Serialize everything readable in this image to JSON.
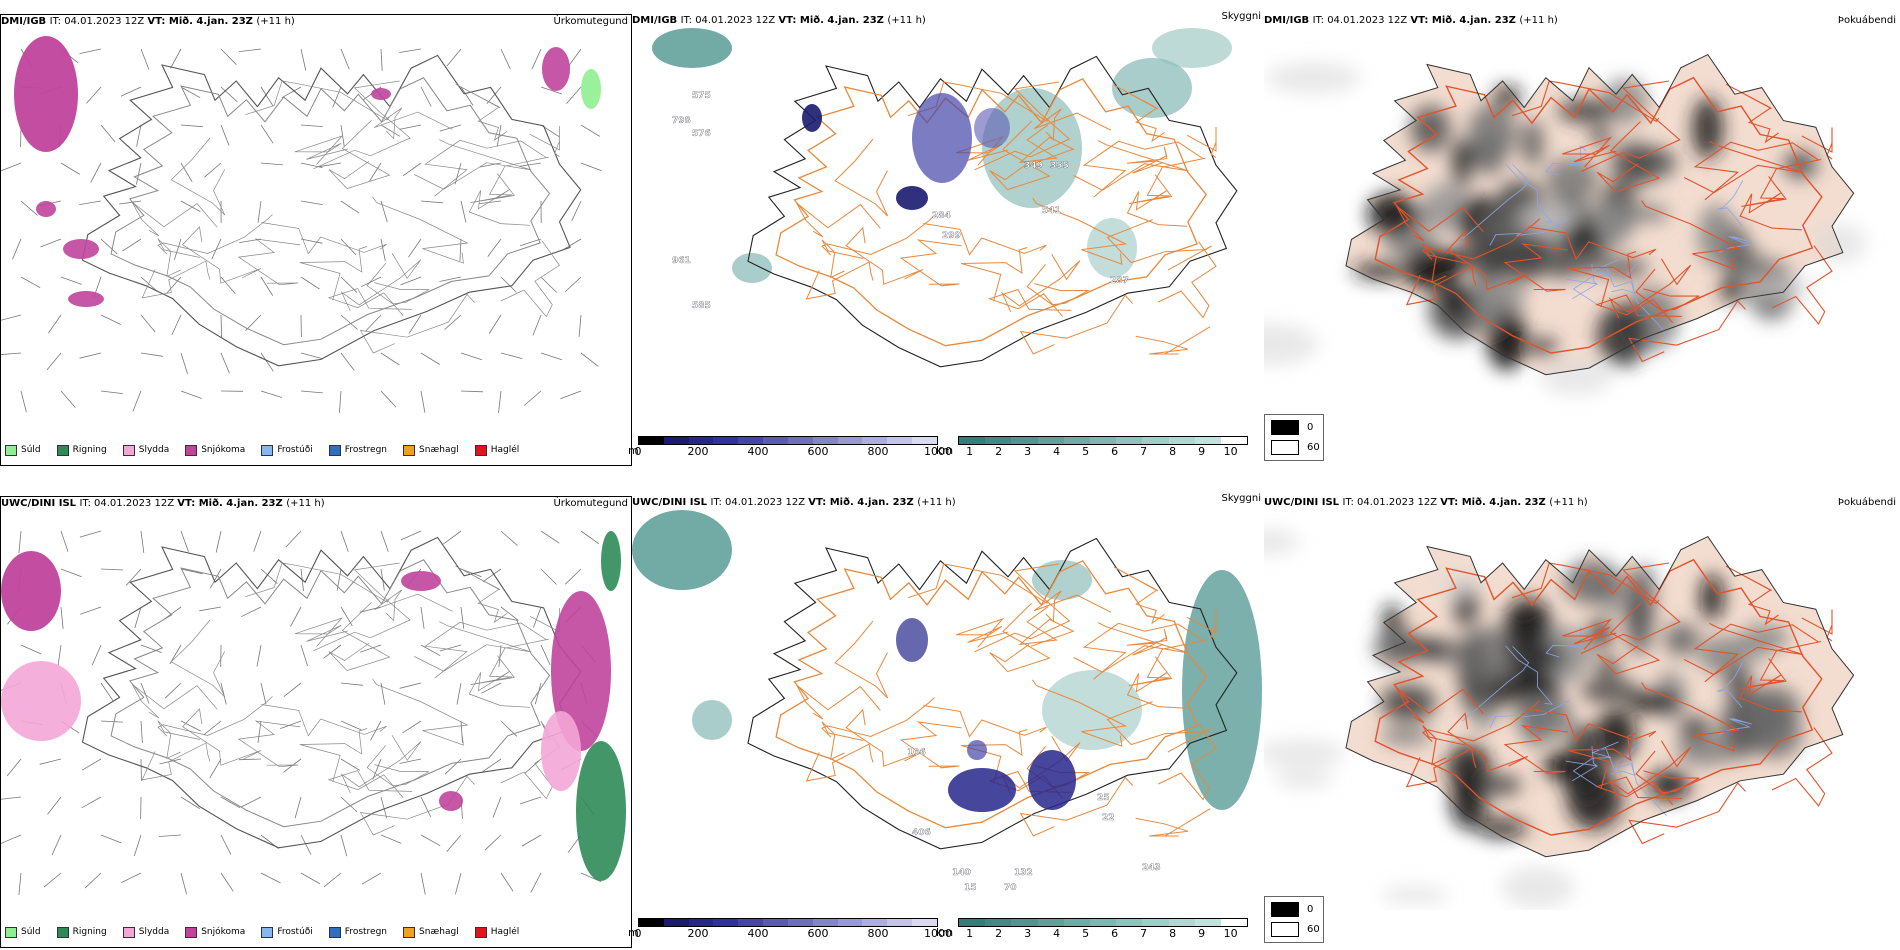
{
  "rows": [
    {
      "model": "DMI/IGB",
      "it_label": "IT:",
      "it_value": "04.01.2023 12Z",
      "vt_label": "VT:",
      "vt_value": "Mið. 4.jan. 23Z",
      "lead": "(+11 h)",
      "titles": {
        "precip": "Úrkomutegund",
        "visibility": "Skyggni",
        "fog": "Þokuábendi"
      }
    },
    {
      "model": "UWC/DINI ISL",
      "it_label": "IT:",
      "it_value": "04.01.2023 12Z",
      "vt_label": "VT:",
      "vt_value": "Mið. 4.jan. 23Z",
      "lead": "(+11 h)",
      "titles": {
        "precip": "Úrkomutegund",
        "visibility": "Skyggni",
        "fog": "Þokuábendi"
      }
    }
  ],
  "precip_legend": [
    {
      "label": "Súld",
      "color": "#90ee90"
    },
    {
      "label": "Rigning",
      "color": "#2e8b57"
    },
    {
      "label": "Slydda",
      "color": "#f4a6d7"
    },
    {
      "label": "Snjókoma",
      "color": "#c0449c"
    },
    {
      "label": "Frostúði",
      "color": "#87b7ec"
    },
    {
      "label": "Frostregn",
      "color": "#2f6fbf"
    },
    {
      "label": "Snæhagl",
      "color": "#f0a020"
    },
    {
      "label": "Haglél",
      "color": "#e0141e"
    }
  ],
  "ceiling_bar": {
    "unit": "m",
    "ticks": [
      "0",
      "200",
      "400",
      "600",
      "800",
      "1000"
    ],
    "colors": [
      "#000000",
      "#1a1a6e",
      "#26268c",
      "#3030a0",
      "#4444aa",
      "#5a5ab4",
      "#6e6ebe",
      "#8484c8",
      "#9898d2",
      "#aeaedc",
      "#c4c4e6",
      "#dadaf0"
    ]
  },
  "visibility_bar": {
    "unit": "km",
    "ticks": [
      "1",
      "2",
      "3",
      "4",
      "5",
      "6",
      "7",
      "8",
      "9",
      "10"
    ],
    "colors": [
      "#2f7f7a",
      "#3f8a85",
      "#4f9590",
      "#5fa09b",
      "#70aba6",
      "#80b6b1",
      "#91c1bc",
      "#a1ccc7",
      "#b2d7d2",
      "#c2e2dd",
      "#ffffff"
    ]
  },
  "fog_legend": [
    {
      "label": "0",
      "color": "#000000"
    },
    {
      "label": "60",
      "color": "#ffffff"
    }
  ],
  "map_labels": {
    "top": [
      "575",
      "798",
      "576",
      "284",
      "299",
      "349",
      "355",
      "541",
      "961",
      "585",
      "287"
    ],
    "bottom": [
      "106",
      "406",
      "140",
      "132",
      "70",
      "15",
      "243",
      "25",
      "22"
    ]
  }
}
